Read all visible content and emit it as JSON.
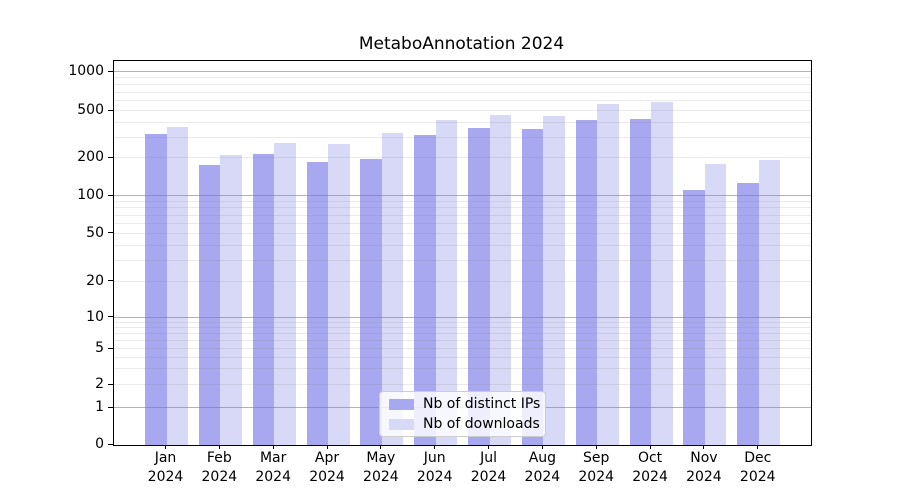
{
  "title": "MetaboAnnotation 2024",
  "chart_data": {
    "type": "bar",
    "title": "MetaboAnnotation 2024",
    "categories": [
      "Jan 2024",
      "Feb 2024",
      "Mar 2024",
      "Apr 2024",
      "May 2024",
      "Jun 2024",
      "Jul 2024",
      "Aug 2024",
      "Sep 2024",
      "Oct 2024",
      "Nov 2024",
      "Dec 2024"
    ],
    "month_labels": [
      "Jan",
      "Feb",
      "Mar",
      "Apr",
      "May",
      "Jun",
      "Jul",
      "Aug",
      "Sep",
      "Oct",
      "Nov",
      "Dec"
    ],
    "year_label": "2024",
    "series": [
      {
        "name": "Nb of distinct IPs",
        "color": "#a8a8f0",
        "values": [
          322,
          178,
          220,
          186,
          198,
          315,
          360,
          356,
          420,
          428,
          113,
          128
        ]
      },
      {
        "name": "Nb of downloads",
        "color": "#d8d8f7",
        "values": [
          368,
          212,
          272,
          264,
          326,
          424,
          464,
          455,
          570,
          596,
          180,
          196
        ]
      }
    ],
    "yscale": "symlog",
    "y_tick_values": [
      0,
      1,
      2,
      5,
      10,
      20,
      50,
      100,
      200,
      500,
      1000
    ],
    "y_tick_labels": [
      "0",
      "1",
      "2",
      "5",
      "10",
      "20",
      "50",
      "100",
      "200",
      "500",
      "1000"
    ],
    "ylim": [
      0,
      1060
    ],
    "xlabel": "",
    "ylabel": "",
    "grid": "major+minor, drawn above bars",
    "legend_position": "lower-center"
  },
  "colors": {
    "bar_distinct_ips": "#a8a8f0",
    "bar_downloads": "#d8d8f7",
    "grid_major": "rgba(128,128,128,0.6)",
    "grid_minor": "rgba(128,128,128,0.17)",
    "spine": "#000000",
    "background": "#ffffff",
    "text": "#000000",
    "legend_border": "#cccccc"
  }
}
